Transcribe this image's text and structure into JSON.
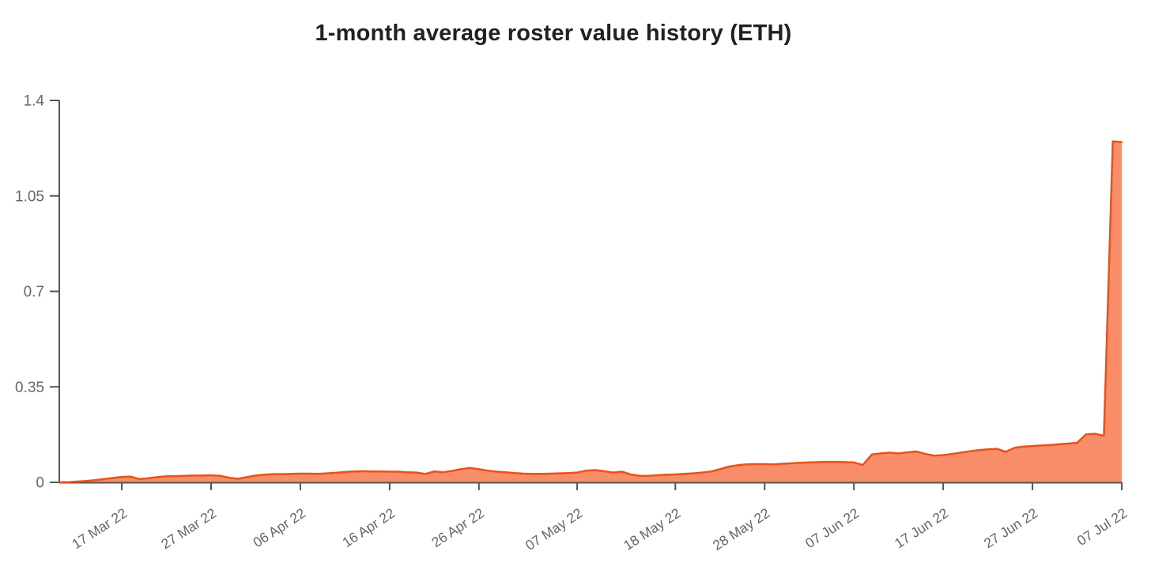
{
  "chart_data": {
    "type": "area",
    "title": "1-month average roster value history (ETH)",
    "xlabel": "",
    "ylabel": "",
    "ylim": [
      0,
      1.4
    ],
    "yticks": [
      0,
      0.35,
      0.7,
      1.05,
      1.4
    ],
    "ytick_labels": [
      "0",
      "0.35",
      "0.7",
      "1.05",
      "1.4"
    ],
    "xtick_labels": [
      "17 Mar 22",
      "27 Mar 22",
      "06 Apr 22",
      "16 Apr 22",
      "26 Apr 22",
      "07 May 22",
      "18 May 22",
      "28 May 22",
      "07 Jun 22",
      "17 Jun 22",
      "27 Jun 22",
      "07 Jul 22"
    ],
    "grid": false,
    "legend": "none",
    "colors": {
      "fill": "#f98c69",
      "line": "#e85318",
      "axis": "#555555",
      "tick_label": "#666666",
      "title": "#202124"
    },
    "x": [
      "10 Mar 22",
      "11 Mar 22",
      "12 Mar 22",
      "13 Mar 22",
      "14 Mar 22",
      "15 Mar 22",
      "16 Mar 22",
      "17 Mar 22",
      "18 Mar 22",
      "19 Mar 22",
      "20 Mar 22",
      "21 Mar 22",
      "22 Mar 22",
      "23 Mar 22",
      "24 Mar 22",
      "25 Mar 22",
      "26 Mar 22",
      "27 Mar 22",
      "28 Mar 22",
      "29 Mar 22",
      "30 Mar 22",
      "31 Mar 22",
      "01 Apr 22",
      "02 Apr 22",
      "03 Apr 22",
      "04 Apr 22",
      "05 Apr 22",
      "06 Apr 22",
      "07 Apr 22",
      "08 Apr 22",
      "09 Apr 22",
      "10 Apr 22",
      "11 Apr 22",
      "12 Apr 22",
      "13 Apr 22",
      "14 Apr 22",
      "15 Apr 22",
      "16 Apr 22",
      "17 Apr 22",
      "18 Apr 22",
      "19 Apr 22",
      "20 Apr 22",
      "21 Apr 22",
      "22 Apr 22",
      "23 Apr 22",
      "24 Apr 22",
      "25 Apr 22",
      "26 Apr 22",
      "27 Apr 22",
      "28 Apr 22",
      "29 Apr 22",
      "30 Apr 22",
      "01 May 22",
      "02 May 22",
      "03 May 22",
      "04 May 22",
      "05 May 22",
      "06 May 22",
      "07 May 22",
      "08 May 22",
      "09 May 22",
      "10 May 22",
      "11 May 22",
      "12 May 22",
      "13 May 22",
      "14 May 22",
      "15 May 22",
      "16 May 22",
      "17 May 22",
      "18 May 22",
      "19 May 22",
      "20 May 22",
      "21 May 22",
      "22 May 22",
      "23 May 22",
      "24 May 22",
      "25 May 22",
      "26 May 22",
      "27 May 22",
      "28 May 22",
      "29 May 22",
      "30 May 22",
      "31 May 22",
      "01 Jun 22",
      "02 Jun 22",
      "03 Jun 22",
      "04 Jun 22",
      "05 Jun 22",
      "06 Jun 22",
      "07 Jun 22",
      "08 Jun 22",
      "09 Jun 22",
      "10 Jun 22",
      "11 Jun 22",
      "12 Jun 22",
      "13 Jun 22",
      "14 Jun 22",
      "15 Jun 22",
      "16 Jun 22",
      "17 Jun 22",
      "18 Jun 22",
      "19 Jun 22",
      "20 Jun 22",
      "21 Jun 22",
      "22 Jun 22",
      "23 Jun 22",
      "24 Jun 22",
      "25 Jun 22",
      "26 Jun 22",
      "27 Jun 22",
      "28 Jun 22",
      "29 Jun 22",
      "30 Jun 22",
      "01 Jul 22",
      "02 Jul 22",
      "03 Jul 22",
      "04 Jul 22",
      "05 Jul 22",
      "06 Jul 22",
      "07 Jul 22"
    ],
    "values": [
      0.0,
      0.001,
      0.003,
      0.005,
      0.008,
      0.012,
      0.016,
      0.02,
      0.021,
      0.012,
      0.015,
      0.019,
      0.022,
      0.023,
      0.024,
      0.025,
      0.025,
      0.026,
      0.024,
      0.017,
      0.013,
      0.019,
      0.025,
      0.028,
      0.03,
      0.03,
      0.031,
      0.032,
      0.032,
      0.031,
      0.033,
      0.035,
      0.038,
      0.04,
      0.041,
      0.04,
      0.04,
      0.039,
      0.039,
      0.037,
      0.036,
      0.031,
      0.04,
      0.037,
      0.042,
      0.048,
      0.053,
      0.048,
      0.043,
      0.039,
      0.037,
      0.034,
      0.032,
      0.031,
      0.031,
      0.032,
      0.033,
      0.034,
      0.036,
      0.043,
      0.045,
      0.041,
      0.036,
      0.039,
      0.029,
      0.024,
      0.024,
      0.026,
      0.028,
      0.029,
      0.031,
      0.033,
      0.036,
      0.04,
      0.048,
      0.058,
      0.063,
      0.066,
      0.067,
      0.067,
      0.066,
      0.068,
      0.07,
      0.072,
      0.073,
      0.074,
      0.075,
      0.075,
      0.074,
      0.073,
      0.064,
      0.102,
      0.106,
      0.109,
      0.106,
      0.11,
      0.113,
      0.104,
      0.098,
      0.1,
      0.104,
      0.109,
      0.114,
      0.118,
      0.121,
      0.123,
      0.112,
      0.127,
      0.131,
      0.133,
      0.135,
      0.137,
      0.14,
      0.142,
      0.145,
      0.176,
      0.178,
      0.171,
      1.25,
      1.247
    ]
  }
}
